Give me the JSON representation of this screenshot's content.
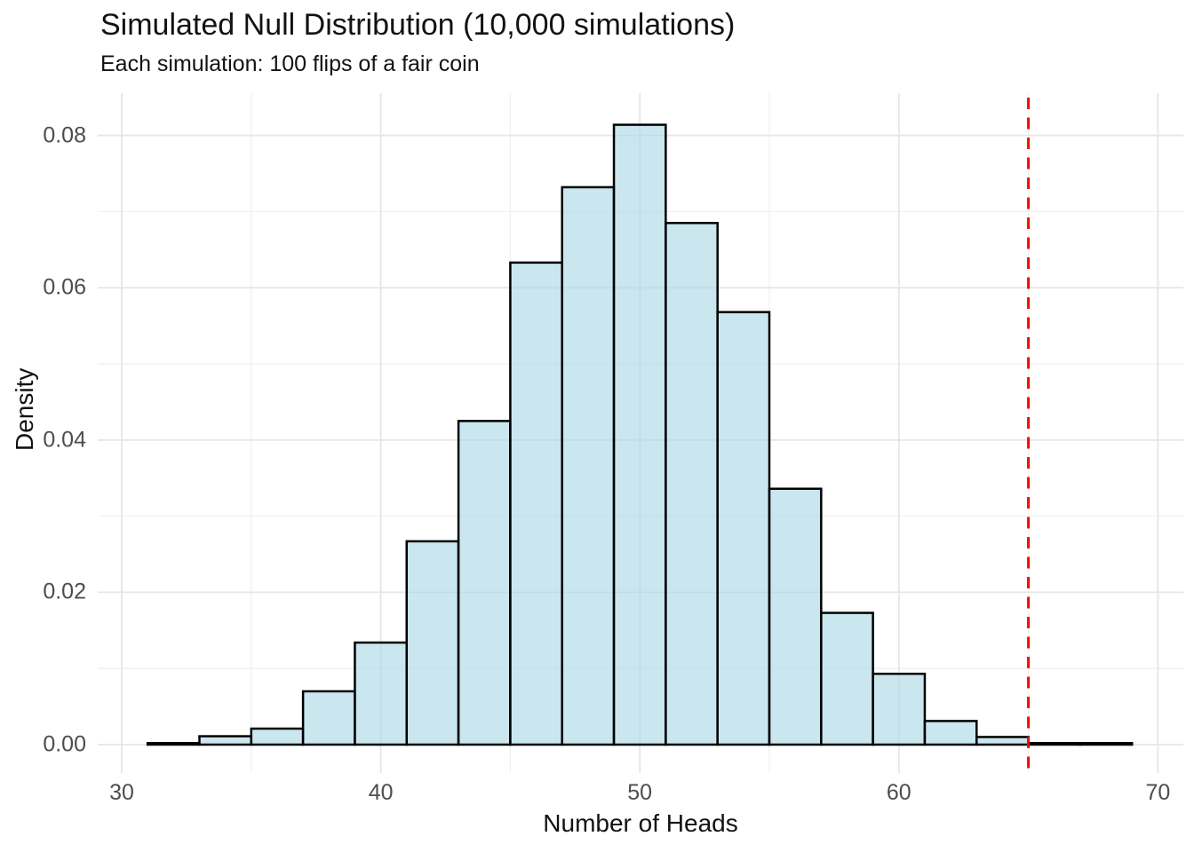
{
  "figure": {
    "title": "Simulated Null Distribution (10,000 simulations)",
    "subtitle": "Each simulation: 100 flips of a fair coin"
  },
  "chart_data": {
    "type": "bar",
    "subtype": "histogram",
    "title": "Simulated Null Distribution (10,000 simulations)",
    "subtitle": "Each simulation: 100 flips of a fair coin",
    "xlabel": "Number of Heads",
    "ylabel": "Density",
    "bin_width": 2,
    "bin_starts": [
      31,
      33,
      35,
      37,
      39,
      41,
      43,
      45,
      47,
      49,
      51,
      53,
      55,
      57,
      59,
      61,
      63,
      65,
      67
    ],
    "densities": [
      0.0002,
      0.0011,
      0.0021,
      0.007,
      0.0134,
      0.0267,
      0.0425,
      0.0633,
      0.0732,
      0.0814,
      0.0685,
      0.0568,
      0.0336,
      0.0173,
      0.0093,
      0.0031,
      0.001,
      0.0002,
      0.0002
    ],
    "x_ticks": [
      30,
      40,
      50,
      60,
      70
    ],
    "x_tick_labels": [
      "30",
      "40",
      "50",
      "60",
      "70"
    ],
    "x_minor_gridlines": [
      35,
      45,
      55,
      65
    ],
    "y_ticks": [
      0,
      0.02,
      0.04,
      0.06,
      0.08
    ],
    "y_tick_labels": [
      "0.00",
      "0.02",
      "0.04",
      "0.06",
      "0.08"
    ],
    "y_minor_gridlines": [
      0.01,
      0.03,
      0.05,
      0.07
    ],
    "xlim": [
      29.1,
      70.9
    ],
    "ylim": [
      -0.004,
      0.0855
    ],
    "grid": true,
    "legend": "none",
    "reference_line": {
      "x": 65,
      "style": "dashed",
      "orientation": "vertical"
    },
    "colors": {
      "bar_fill": "#ADD8E6",
      "bar_fill_alpha": 0.65,
      "bar_border": "#000000",
      "reference_line": "#FF0000",
      "gridline_major": "#E6E6E6",
      "gridline_minor": "#F1F1F1",
      "axis_text": "#4D4D4D",
      "title_text": "#121212",
      "background": "#FFFFFF"
    }
  }
}
